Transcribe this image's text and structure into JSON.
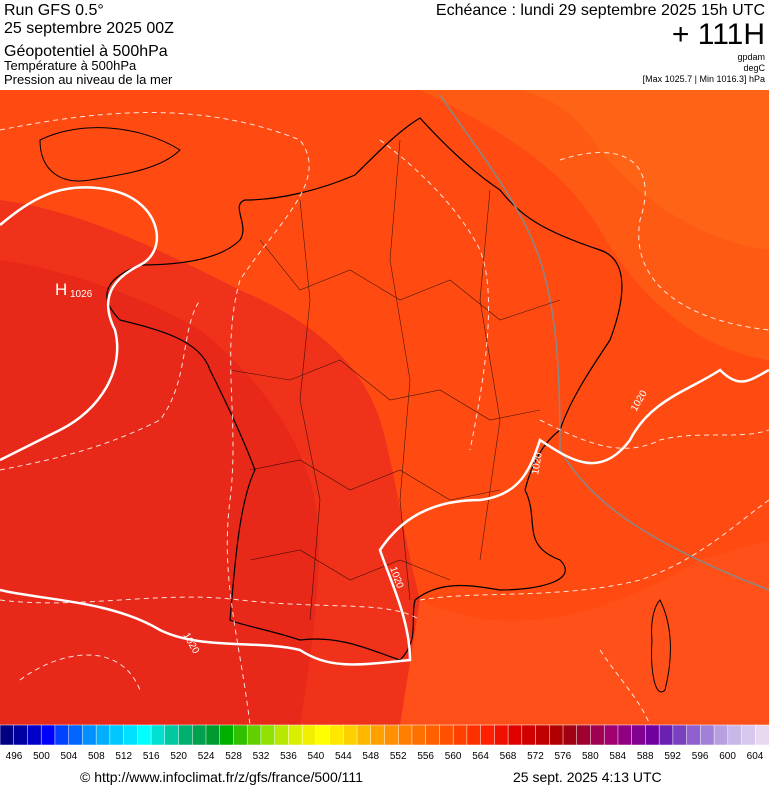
{
  "header": {
    "run": "Run GFS 0.5°",
    "run_date": "25 septembre 2025 00Z",
    "field_1": "Géopotentiel à 500hPa",
    "field_2": "Température à 500hPa",
    "field_3": "Pression au niveau de la mer",
    "valid_time": "Echéance : lundi 29 septembre 2025 15h UTC",
    "lead_time": "+ 111H",
    "unit_1": "gpdam",
    "unit_2": "degC",
    "pressure_range": "[Max 1025.7 | Min 1016.3] hPa"
  },
  "map": {
    "high_letter": "H",
    "high_value": "1026",
    "isobar_labels": [
      "1020",
      "1020",
      "1020",
      "1020"
    ]
  },
  "colorbar": {
    "labels": [
      496,
      500,
      504,
      508,
      512,
      516,
      520,
      524,
      528,
      532,
      536,
      540,
      544,
      548,
      552,
      556,
      560,
      564,
      568,
      572,
      576,
      580,
      584,
      588,
      592,
      596,
      600,
      604
    ],
    "colors": [
      "#000080",
      "#0000a0",
      "#0000c8",
      "#0000ff",
      "#0040ff",
      "#0066ff",
      "#0090ff",
      "#00b0ff",
      "#00c8ff",
      "#00e0ff",
      "#00ffff",
      "#00e0d0",
      "#00c8a0",
      "#00b070",
      "#00a050",
      "#009a30",
      "#00b000",
      "#30c000",
      "#60d000",
      "#90e000",
      "#b8e800",
      "#d8f000",
      "#f0f000",
      "#ffff00",
      "#ffe800",
      "#ffd000",
      "#ffb800",
      "#ffa000",
      "#ff9000",
      "#ff8000",
      "#ff7000",
      "#ff6000",
      "#ff5000",
      "#ff4000",
      "#ff3000",
      "#ff2000",
      "#f01000",
      "#e00000",
      "#d00000",
      "#c00000",
      "#b00000",
      "#a00010",
      "#a00030",
      "#a00050",
      "#a00070",
      "#900080",
      "#800090",
      "#7000a0",
      "#6a20b0",
      "#7a40c0",
      "#9060d0",
      "#a080d8",
      "#b8a0e0",
      "#c8b8e8",
      "#d8c8f0",
      "#e8d8f0"
    ]
  },
  "footer": {
    "source": "© http://www.infoclimat.fr/z/gfs/france/500/111",
    "generated": "25 sept. 2025  4:13 UTC"
  }
}
